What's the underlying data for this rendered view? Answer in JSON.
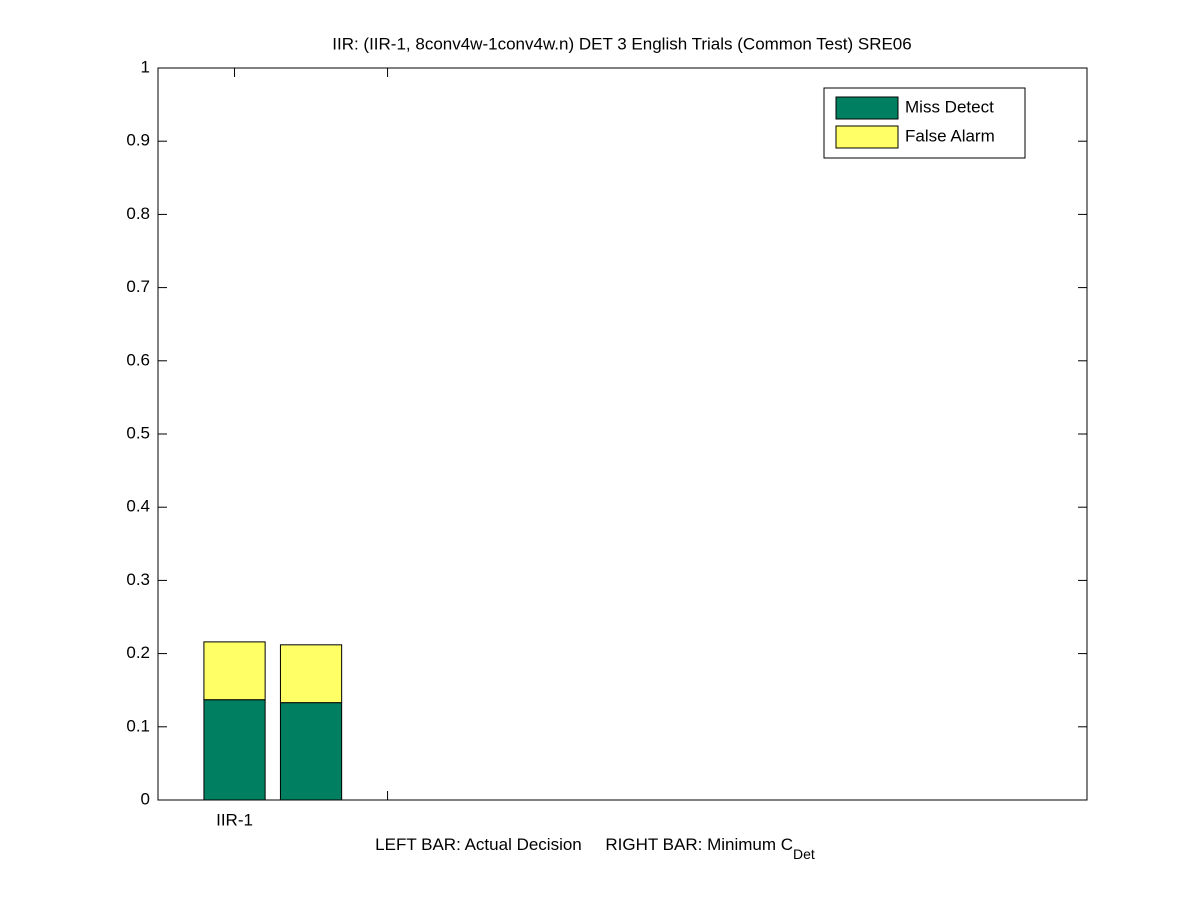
{
  "chart_data": {
    "type": "stacked-bar",
    "title": "IIR: (IIR-1, 8conv4w-1conv4w.n) DET 3 English Trials (Common Test) SRE06",
    "xlabel": {
      "text": "LEFT BAR: Actual Decision     RIGHT BAR: Minimum C",
      "subscript": "Det"
    },
    "x": [
      1,
      1.5
    ],
    "series": [
      {
        "name": "Miss Detect",
        "color": "#008060",
        "values": [
          0.137,
          0.133
        ]
      },
      {
        "name": "False Alarm",
        "color": "#ffff66",
        "values": [
          0.079,
          0.079
        ]
      }
    ],
    "xlim": [
      0.5,
      6.57
    ],
    "xticks": [
      {
        "value": 1,
        "label": "IIR-1"
      },
      {
        "value": 2,
        "label": null
      }
    ],
    "ylim": [
      0,
      1
    ],
    "yticks": [
      0,
      0.1,
      0.2,
      0.3,
      0.4,
      0.5,
      0.6,
      0.7,
      0.8,
      0.9,
      1
    ],
    "legend": "top-right"
  }
}
